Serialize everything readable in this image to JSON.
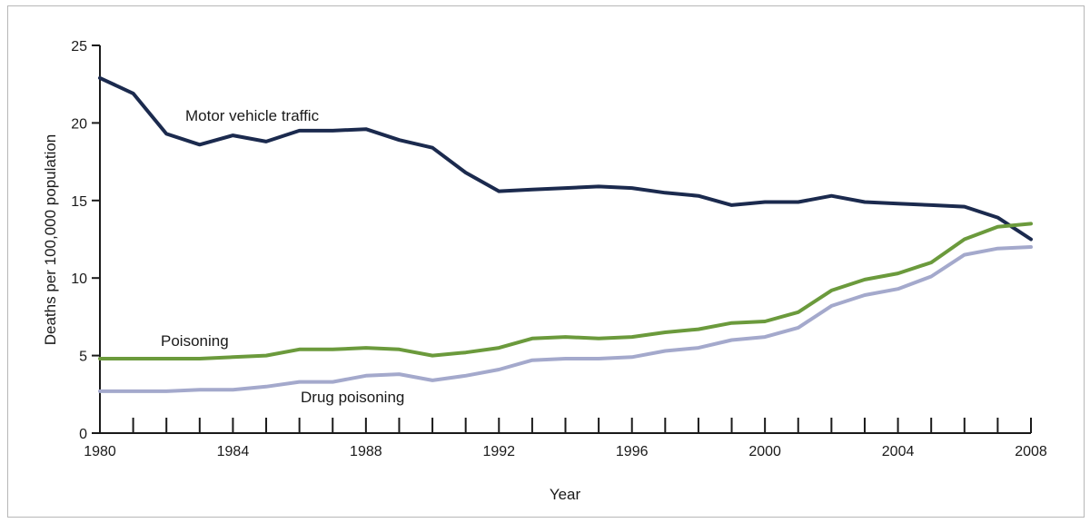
{
  "chart_data": {
    "type": "line",
    "xlabel": "Year",
    "ylabel": "Deaths per 100,000 population",
    "xlim": [
      1980,
      2008
    ],
    "ylim": [
      0,
      25
    ],
    "x_ticks": [
      1980,
      1981,
      1982,
      1983,
      1984,
      1985,
      1986,
      1987,
      1988,
      1989,
      1990,
      1991,
      1992,
      1993,
      1994,
      1995,
      1996,
      1997,
      1998,
      1999,
      2000,
      2001,
      2002,
      2003,
      2004,
      2005,
      2006,
      2007,
      2008
    ],
    "x_tick_labels": [
      "1980",
      "1984",
      "1988",
      "1992",
      "1996",
      "2000",
      "2004",
      "2008"
    ],
    "y_ticks": [
      0,
      5,
      10,
      15,
      20,
      25
    ],
    "y_tick_labels": [
      "0",
      "5",
      "10",
      "15",
      "20",
      "25"
    ],
    "grid": false,
    "x": [
      1980,
      1981,
      1982,
      1983,
      1984,
      1985,
      1986,
      1987,
      1988,
      1989,
      1990,
      1991,
      1992,
      1993,
      1994,
      1995,
      1996,
      1997,
      1998,
      1999,
      2000,
      2001,
      2002,
      2003,
      2004,
      2005,
      2006,
      2007,
      2008
    ],
    "series": [
      {
        "name": "Motor vehicle traffic",
        "color": "#1b2a4e",
        "values": [
          22.9,
          21.9,
          19.3,
          18.6,
          19.2,
          18.8,
          19.5,
          19.5,
          19.6,
          18.9,
          18.4,
          16.8,
          15.6,
          15.7,
          15.8,
          15.9,
          15.8,
          15.5,
          15.3,
          14.7,
          14.9,
          14.9,
          15.3,
          14.9,
          14.8,
          14.7,
          14.6,
          13.9,
          12.5
        ]
      },
      {
        "name": "Poisoning",
        "color": "#6b9a3c",
        "values": [
          4.8,
          4.8,
          4.8,
          4.8,
          4.9,
          5.0,
          5.4,
          5.4,
          5.5,
          5.4,
          5.0,
          5.2,
          5.5,
          6.1,
          6.2,
          6.1,
          6.2,
          6.5,
          6.7,
          7.1,
          7.2,
          7.8,
          9.2,
          9.9,
          10.3,
          11.0,
          12.5,
          13.3,
          13.5
        ]
      },
      {
        "name": "Drug poisoning",
        "color": "#a4a9cc",
        "values": [
          2.7,
          2.7,
          2.7,
          2.8,
          2.8,
          3.0,
          3.3,
          3.3,
          3.7,
          3.8,
          3.4,
          3.7,
          4.1,
          4.7,
          4.8,
          4.8,
          4.9,
          5.3,
          5.5,
          6.0,
          6.2,
          6.8,
          8.2,
          8.9,
          9.3,
          10.1,
          11.5,
          11.9,
          12.0
        ]
      }
    ]
  }
}
